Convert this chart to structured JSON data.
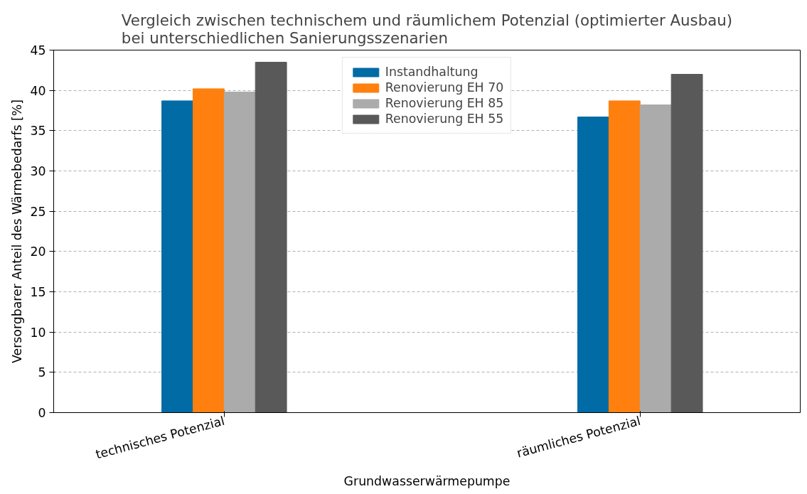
{
  "chart_data": {
    "type": "bar",
    "title": "Vergleich zwischen technischem und räumlichem Potenzial (optimierter Ausbau)\nbei unterschiedlichen Sanierungsszenarien",
    "xlabel": "Grundwasserwärmepumpe",
    "ylabel": "Versorgbarer Anteil des Wärmebedarfs [%]",
    "categories": [
      "technisches Potenzial",
      "räumliches Potenzial"
    ],
    "series": [
      {
        "name": "Instandhaltung",
        "color": "#006ba4",
        "values": [
          38.7,
          36.7
        ]
      },
      {
        "name": "Renovierung EH 70",
        "color": "#ff800e",
        "values": [
          40.2,
          38.7
        ]
      },
      {
        "name": "Renovierung EH 85",
        "color": "#ababab",
        "values": [
          39.8,
          38.2
        ]
      },
      {
        "name": "Renovierung EH 55",
        "color": "#595959",
        "values": [
          43.5,
          42.0
        ]
      }
    ],
    "ylim": [
      0,
      45
    ],
    "yticks": [
      0,
      5,
      10,
      15,
      20,
      25,
      30,
      35,
      40,
      45
    ],
    "grid": "y",
    "legend": "top"
  }
}
